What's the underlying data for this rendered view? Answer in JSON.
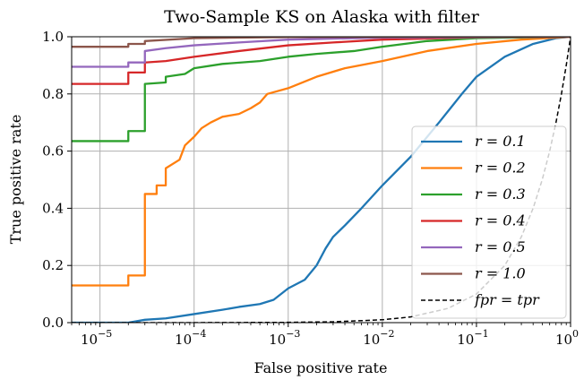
{
  "chart_data": {
    "type": "line",
    "title": "Two-Sample KS on Alaska with filter",
    "xlabel": "False positive rate",
    "ylabel": "True positive rate",
    "xscale": "log",
    "xlim": [
      5e-06,
      1
    ],
    "ylim": [
      0,
      1
    ],
    "grid": true,
    "legend_position": "lower-right",
    "x_ticks": [
      {
        "value": 1e-05,
        "base": "10",
        "exp": "−5"
      },
      {
        "value": 0.0001,
        "base": "10",
        "exp": "−4"
      },
      {
        "value": 0.001,
        "base": "10",
        "exp": "−3"
      },
      {
        "value": 0.01,
        "base": "10",
        "exp": "−2"
      },
      {
        "value": 0.1,
        "base": "10",
        "exp": "−1"
      },
      {
        "value": 1,
        "base": "10",
        "exp": "0"
      }
    ],
    "y_ticks": [
      {
        "value": 0.0,
        "label": "0.0"
      },
      {
        "value": 0.2,
        "label": "0.2"
      },
      {
        "value": 0.4,
        "label": "0.4"
      },
      {
        "value": 0.6,
        "label": "0.6"
      },
      {
        "value": 0.8,
        "label": "0.8"
      },
      {
        "value": 1.0,
        "label": "1.0"
      }
    ],
    "series": [
      {
        "name": "r = 0.1",
        "color": "#1f77b4",
        "dashed": false,
        "points": [
          [
            5e-06,
            0.0
          ],
          [
            2e-05,
            0.0
          ],
          [
            3e-05,
            0.01
          ],
          [
            5e-05,
            0.015
          ],
          [
            0.0001,
            0.03
          ],
          [
            0.0002,
            0.045
          ],
          [
            0.0003,
            0.055
          ],
          [
            0.0005,
            0.065
          ],
          [
            0.0007,
            0.08
          ],
          [
            0.001,
            0.12
          ],
          [
            0.0015,
            0.15
          ],
          [
            0.002,
            0.2
          ],
          [
            0.0025,
            0.26
          ],
          [
            0.003,
            0.3
          ],
          [
            0.004,
            0.34
          ],
          [
            0.006,
            0.4
          ],
          [
            0.01,
            0.48
          ],
          [
            0.02,
            0.58
          ],
          [
            0.04,
            0.7
          ],
          [
            0.07,
            0.8
          ],
          [
            0.1,
            0.86
          ],
          [
            0.2,
            0.93
          ],
          [
            0.4,
            0.975
          ],
          [
            0.7,
            0.995
          ],
          [
            1,
            1
          ]
        ]
      },
      {
        "name": "r = 0.2",
        "color": "#ff7f0e",
        "dashed": false,
        "points": [
          [
            5e-06,
            0.13
          ],
          [
            2e-05,
            0.13
          ],
          [
            2e-05,
            0.165
          ],
          [
            3e-05,
            0.165
          ],
          [
            3e-05,
            0.45
          ],
          [
            4e-05,
            0.45
          ],
          [
            4e-05,
            0.48
          ],
          [
            5e-05,
            0.48
          ],
          [
            5e-05,
            0.54
          ],
          [
            7e-05,
            0.57
          ],
          [
            8e-05,
            0.62
          ],
          [
            0.0001,
            0.65
          ],
          [
            0.00012,
            0.68
          ],
          [
            0.00015,
            0.7
          ],
          [
            0.0002,
            0.72
          ],
          [
            0.0003,
            0.73
          ],
          [
            0.0004,
            0.75
          ],
          [
            0.0005,
            0.77
          ],
          [
            0.0006,
            0.8
          ],
          [
            0.001,
            0.82
          ],
          [
            0.002,
            0.86
          ],
          [
            0.004,
            0.89
          ],
          [
            0.01,
            0.915
          ],
          [
            0.03,
            0.95
          ],
          [
            0.1,
            0.975
          ],
          [
            0.3,
            0.99
          ],
          [
            1,
            1
          ]
        ]
      },
      {
        "name": "r = 0.3",
        "color": "#2ca02c",
        "dashed": false,
        "points": [
          [
            5e-06,
            0.635
          ],
          [
            2e-05,
            0.635
          ],
          [
            2e-05,
            0.67
          ],
          [
            3e-05,
            0.67
          ],
          [
            3e-05,
            0.835
          ],
          [
            5e-05,
            0.84
          ],
          [
            5e-05,
            0.86
          ],
          [
            8e-05,
            0.87
          ],
          [
            0.0001,
            0.89
          ],
          [
            0.0002,
            0.905
          ],
          [
            0.0005,
            0.915
          ],
          [
            0.001,
            0.93
          ],
          [
            0.002,
            0.94
          ],
          [
            0.005,
            0.95
          ],
          [
            0.01,
            0.965
          ],
          [
            0.03,
            0.985
          ],
          [
            0.1,
            0.995
          ],
          [
            1,
            1
          ]
        ]
      },
      {
        "name": "r = 0.4",
        "color": "#d62728",
        "dashed": false,
        "points": [
          [
            5e-06,
            0.835
          ],
          [
            2e-05,
            0.835
          ],
          [
            2e-05,
            0.875
          ],
          [
            3e-05,
            0.875
          ],
          [
            3e-05,
            0.91
          ],
          [
            5e-05,
            0.915
          ],
          [
            0.0001,
            0.93
          ],
          [
            0.0003,
            0.95
          ],
          [
            0.001,
            0.97
          ],
          [
            0.003,
            0.98
          ],
          [
            0.01,
            0.99
          ],
          [
            0.1,
            0.998
          ],
          [
            1,
            1
          ]
        ]
      },
      {
        "name": "r = 0.5",
        "color": "#9467bd",
        "dashed": false,
        "points": [
          [
            5e-06,
            0.895
          ],
          [
            2e-05,
            0.895
          ],
          [
            2e-05,
            0.91
          ],
          [
            3e-05,
            0.91
          ],
          [
            3e-05,
            0.95
          ],
          [
            5e-05,
            0.96
          ],
          [
            0.0001,
            0.97
          ],
          [
            0.0003,
            0.98
          ],
          [
            0.001,
            0.99
          ],
          [
            0.01,
            0.997
          ],
          [
            1,
            1
          ]
        ]
      },
      {
        "name": "r = 1.0",
        "color": "#8c564b",
        "dashed": false,
        "points": [
          [
            5e-06,
            0.965
          ],
          [
            2e-05,
            0.965
          ],
          [
            2e-05,
            0.975
          ],
          [
            3e-05,
            0.975
          ],
          [
            3e-05,
            0.985
          ],
          [
            0.0001,
            0.995
          ],
          [
            0.001,
            0.999
          ],
          [
            1,
            1
          ]
        ]
      },
      {
        "name": "fpr = tpr",
        "color": "#000000",
        "dashed": true,
        "points": [
          [
            5e-06,
            5e-06
          ],
          [
            0.0001,
            0.0001
          ],
          [
            0.001,
            0.001
          ],
          [
            0.003,
            0.003
          ],
          [
            0.01,
            0.01
          ],
          [
            0.02,
            0.02
          ],
          [
            0.05,
            0.05
          ],
          [
            0.1,
            0.1
          ],
          [
            0.2,
            0.2
          ],
          [
            0.3,
            0.3
          ],
          [
            0.4,
            0.4
          ],
          [
            0.5,
            0.5
          ],
          [
            0.6,
            0.6
          ],
          [
            0.7,
            0.7
          ],
          [
            0.8,
            0.8
          ],
          [
            0.9,
            0.9
          ],
          [
            1,
            1
          ]
        ]
      }
    ]
  }
}
